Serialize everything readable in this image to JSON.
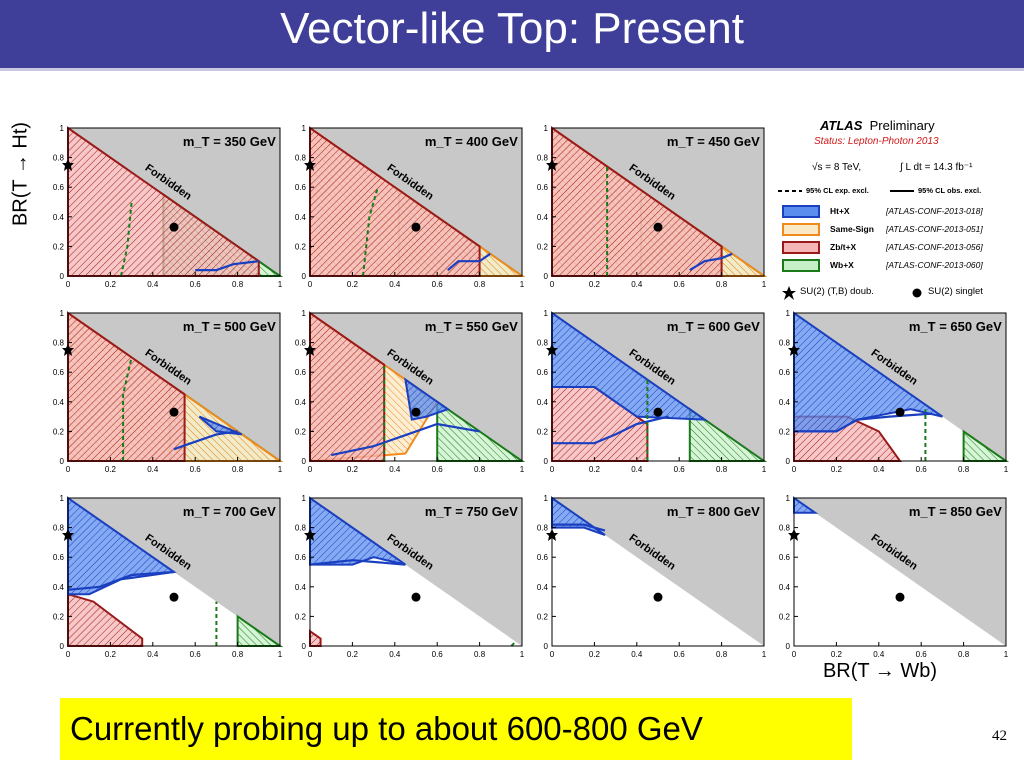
{
  "title": "Vector-like Top: Present",
  "y_axis_label": "BR(T → Ht)",
  "x_axis_label": "BR(T → Wb)",
  "banner": "Currently probing up to about 600-800 GeV",
  "page_number": "42",
  "legend": {
    "experiment": "ATLAS",
    "preliminary": "Preliminary",
    "status": "Status: Lepton-Photon 2013",
    "energy": "√s = 8 TeV,",
    "luminosity": "∫ L dt = 14.3 fb⁻¹",
    "exp_line": "95% CL exp. excl.",
    "obs_line": "95% CL obs. excl.",
    "entries": [
      {
        "name": "Ht+X",
        "ref": "[ATLAS-CONF-2013-018]",
        "fill": "#5b8def",
        "stroke": "#1a3fc0"
      },
      {
        "name": "Same-Sign",
        "ref": "[ATLAS-CONF-2013-051]",
        "fill": "#fbe8c4",
        "stroke": "#f08a1c"
      },
      {
        "name": "Zb/t+X",
        "ref": "[ATLAS-CONF-2013-056]",
        "fill": "#f5b6b6",
        "stroke": "#9a1a1a"
      },
      {
        "name": "Wb+X",
        "ref": "[ATLAS-CONF-2013-060]",
        "fill": "#c8f0c8",
        "stroke": "#1a7a1a"
      }
    ],
    "doublet": "SU(2) (T,B) doub.",
    "singlet": "SU(2) singlet"
  },
  "colors": {
    "title_bar": "#3f3f9a",
    "forbidden": "#c8c8c8",
    "banner": "#ffff00"
  },
  "chart_data": {
    "type": "area",
    "forbidden_label": "Forbidden",
    "x_ticks": [
      "0",
      "0.2",
      "0.4",
      "0.6",
      "0.8",
      "1"
    ],
    "y_ticks": [
      "0",
      "0.2",
      "0.4",
      "0.6",
      "0.8",
      "1"
    ],
    "xlim": [
      0,
      1
    ],
    "ylim": [
      0,
      1
    ],
    "doublet_point": [
      0,
      0.75
    ],
    "singlet_point": [
      0.5,
      0.33
    ],
    "panels": [
      {
        "label": "m_T = 350 GeV",
        "ht_x": [],
        "zb": [
          [
            0,
            1
          ],
          [
            0,
            0
          ],
          [
            0.9,
            0
          ],
          [
            0.9,
            0.1
          ]
        ],
        "ss": [],
        "wb": [
          [
            0,
            0
          ],
          [
            1,
            0
          ],
          [
            0.45,
            0.55
          ],
          [
            0.45,
            0
          ]
        ],
        "ht_obs": [
          [
            0.6,
            0.04
          ],
          [
            0.7,
            0.04
          ],
          [
            0.78,
            0.08
          ],
          [
            0.9,
            0.1
          ]
        ],
        "wb_exp": [
          [
            0.25,
            0
          ],
          [
            0.28,
            0.2
          ],
          [
            0.3,
            0.5
          ]
        ]
      },
      {
        "label": "m_T = 400 GeV",
        "ht_x": [],
        "zb": [
          [
            0,
            1
          ],
          [
            0,
            0
          ],
          [
            0.8,
            0
          ],
          [
            0.8,
            0.2
          ]
        ],
        "ss": [
          [
            0,
            1
          ],
          [
            0,
            0
          ],
          [
            1,
            0
          ]
        ],
        "wb": [
          [
            0.42,
            0
          ],
          [
            1,
            0
          ],
          [
            0.42,
            0.58
          ]
        ],
        "ht_obs": [
          [
            0.65,
            0.04
          ],
          [
            0.7,
            0.1
          ],
          [
            0.8,
            0.1
          ],
          [
            0.85,
            0.15
          ]
        ],
        "wb_exp": [
          [
            0.25,
            0
          ],
          [
            0.28,
            0.4
          ],
          [
            0.32,
            0.6
          ]
        ]
      },
      {
        "label": "m_T = 450 GeV",
        "ht_x": [],
        "zb": [
          [
            0,
            1
          ],
          [
            0,
            0
          ],
          [
            0.8,
            0
          ],
          [
            0.8,
            0.2
          ]
        ],
        "ss": [
          [
            0,
            1
          ],
          [
            0,
            0
          ],
          [
            1,
            0
          ]
        ],
        "wb": [
          [
            0.42,
            0
          ],
          [
            1,
            0
          ],
          [
            0.42,
            0.58
          ]
        ],
        "ht_obs": [
          [
            0.65,
            0.04
          ],
          [
            0.72,
            0.1
          ],
          [
            0.8,
            0.12
          ],
          [
            0.85,
            0.15
          ]
        ],
        "wb_exp": [
          [
            0.26,
            0
          ],
          [
            0.26,
            0.74
          ]
        ]
      },
      {
        "label": "m_T = 500 GeV",
        "ht_x": [
          [
            0.82,
            0.18
          ],
          [
            0.7,
            0.2
          ],
          [
            0.62,
            0.3
          ]
        ],
        "zb": [
          [
            0,
            1
          ],
          [
            0,
            0
          ],
          [
            0.55,
            0
          ],
          [
            0.55,
            0.45
          ]
        ],
        "ss": [
          [
            0,
            1
          ],
          [
            0,
            0
          ],
          [
            1,
            0
          ]
        ],
        "wb": [
          [
            0.48,
            0
          ],
          [
            1,
            0
          ],
          [
            0.48,
            0.52
          ]
        ],
        "ht_obs": [
          [
            0.5,
            0.08
          ],
          [
            0.58,
            0.12
          ],
          [
            0.7,
            0.18
          ],
          [
            0.8,
            0.2
          ]
        ],
        "wb_exp": [
          [
            0.26,
            0
          ],
          [
            0.26,
            0.45
          ],
          [
            0.3,
            0.7
          ]
        ]
      },
      {
        "label": "m_T = 550 GeV",
        "ht_x": [
          [
            0.45,
            0.55
          ],
          [
            0.65,
            0.35
          ],
          [
            0.55,
            0.3
          ],
          [
            0.48,
            0.28
          ]
        ],
        "zb": [
          [
            0,
            1
          ],
          [
            0,
            0
          ],
          [
            0.35,
            0
          ],
          [
            0.35,
            0.65
          ]
        ],
        "ss": [
          [
            0,
            1
          ],
          [
            0,
            0
          ],
          [
            0.45,
            0.05
          ],
          [
            0.6,
            0.4
          ]
        ],
        "wb": [
          [
            0.6,
            0
          ],
          [
            1,
            0
          ],
          [
            0.6,
            0.4
          ]
        ],
        "ht_obs": [
          [
            0.1,
            0.04
          ],
          [
            0.3,
            0.1
          ],
          [
            0.5,
            0.2
          ],
          [
            0.6,
            0.25
          ],
          [
            0.8,
            0.2
          ]
        ],
        "wb_exp": [
          [
            0.35,
            0
          ],
          [
            0.35,
            0.65
          ]
        ]
      },
      {
        "label": "m_T = 600 GeV",
        "ht_x": [
          [
            0,
            1
          ],
          [
            0.1,
            0.9
          ],
          [
            0.72,
            0.28
          ],
          [
            0.4,
            0.3
          ],
          [
            0.2,
            0.5
          ],
          [
            0,
            0.5
          ]
        ],
        "zb": [
          [
            0,
            0.5
          ],
          [
            0.2,
            0.5
          ],
          [
            0.45,
            0.25
          ],
          [
            0.45,
            0
          ],
          [
            0,
            0
          ]
        ],
        "ss": [],
        "wb": [
          [
            0.65,
            0
          ],
          [
            1,
            0
          ],
          [
            0.65,
            0.35
          ]
        ],
        "ht_obs": [
          [
            0,
            0.12
          ],
          [
            0.2,
            0.12
          ],
          [
            0.3,
            0.18
          ],
          [
            0.4,
            0.25
          ],
          [
            0.55,
            0.3
          ]
        ],
        "wb_exp": [
          [
            0.45,
            0
          ],
          [
            0.45,
            0.55
          ]
        ]
      },
      {
        "label": "m_T = 650 GeV",
        "ht_x": [
          [
            0,
            1
          ],
          [
            0,
            0.2
          ],
          [
            0.2,
            0.2
          ],
          [
            0.3,
            0.28
          ],
          [
            0.55,
            0.35
          ],
          [
            0.7,
            0.3
          ],
          [
            0.4,
            0.6
          ],
          [
            0.05,
            0.95
          ]
        ],
        "zb": [
          [
            0,
            0.3
          ],
          [
            0.25,
            0.3
          ],
          [
            0.4,
            0.2
          ],
          [
            0.5,
            0
          ],
          [
            0,
            0
          ]
        ],
        "ss": [],
        "wb": [
          [
            0.8,
            0
          ],
          [
            1,
            0
          ],
          [
            0.8,
            0.2
          ]
        ],
        "ht_obs": [
          [
            0,
            0.2
          ],
          [
            0.2,
            0.2
          ],
          [
            0.3,
            0.28
          ],
          [
            0.45,
            0.3
          ],
          [
            0.65,
            0.32
          ]
        ],
        "wb_exp": [
          [
            0.62,
            0
          ],
          [
            0.62,
            0.35
          ]
        ]
      },
      {
        "label": "m_T = 700 GeV",
        "ht_x": [
          [
            0,
            1
          ],
          [
            0,
            0.35
          ],
          [
            0.1,
            0.35
          ],
          [
            0.25,
            0.45
          ],
          [
            0.5,
            0.5
          ],
          [
            0.3,
            0.7
          ],
          [
            0.05,
            0.95
          ]
        ],
        "zb": [
          [
            0,
            0.35
          ],
          [
            0.12,
            0.3
          ],
          [
            0.35,
            0.05
          ],
          [
            0.35,
            0
          ],
          [
            0,
            0
          ]
        ],
        "ss": [],
        "wb": [
          [
            0.8,
            0
          ],
          [
            1,
            0
          ],
          [
            0.8,
            0.2
          ]
        ],
        "ht_obs": [
          [
            0,
            0.38
          ],
          [
            0.15,
            0.4
          ],
          [
            0.3,
            0.48
          ],
          [
            0.5,
            0.5
          ]
        ],
        "wb_exp": [
          [
            0.7,
            0
          ],
          [
            0.7,
            0.3
          ]
        ]
      },
      {
        "label": "m_T = 750 GeV",
        "ht_x": [
          [
            0,
            1
          ],
          [
            0,
            0.55
          ],
          [
            0.2,
            0.55
          ],
          [
            0.3,
            0.6
          ],
          [
            0.45,
            0.55
          ],
          [
            0.25,
            0.75
          ],
          [
            0.05,
            0.95
          ]
        ],
        "zb": [
          [
            0,
            0.1
          ],
          [
            0.05,
            0.05
          ],
          [
            0.05,
            0
          ],
          [
            0,
            0
          ]
        ],
        "ss": [],
        "wb": [],
        "ht_obs": [
          [
            0,
            0.55
          ],
          [
            0.2,
            0.58
          ],
          [
            0.45,
            0.55
          ]
        ],
        "wb_exp": [
          [
            0.95,
            0
          ],
          [
            0.97,
            0.03
          ]
        ]
      },
      {
        "label": "m_T = 800 GeV",
        "ht_x": [
          [
            0,
            1
          ],
          [
            0,
            0.8
          ],
          [
            0.15,
            0.8
          ],
          [
            0.25,
            0.75
          ],
          [
            0.1,
            0.9
          ],
          [
            0.02,
            0.98
          ]
        ],
        "zb": [],
        "ss": [],
        "wb": [],
        "ht_obs": [
          [
            0,
            0.82
          ],
          [
            0.15,
            0.82
          ],
          [
            0.25,
            0.78
          ]
        ],
        "wb_exp": []
      },
      {
        "label": "m_T = 850 GeV",
        "ht_x": [
          [
            0,
            1
          ],
          [
            0,
            0.9
          ],
          [
            0.1,
            0.9
          ]
        ],
        "zb": [],
        "ss": [],
        "wb": [],
        "ht_obs": [],
        "wb_exp": []
      }
    ]
  }
}
